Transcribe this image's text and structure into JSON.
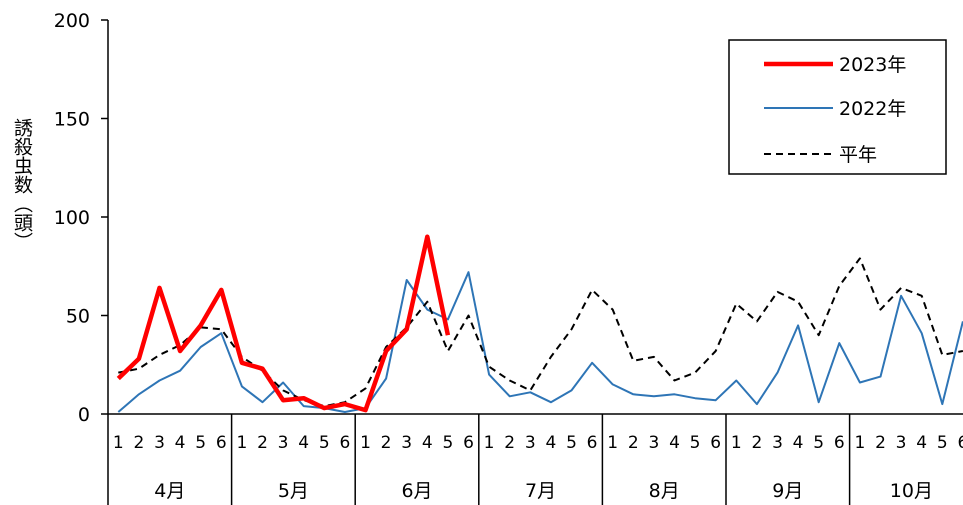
{
  "chart_data": {
    "type": "line",
    "ylabel": "誘殺虫数（頭）",
    "ylim": [
      0,
      200
    ],
    "yticks": [
      "0",
      "50",
      "100",
      "150",
      "200"
    ],
    "sub_labels": [
      "1",
      "2",
      "3",
      "4",
      "5",
      "6"
    ],
    "months": [
      "4月",
      "5月",
      "6月",
      "7月",
      "8月",
      "9月",
      "10月"
    ],
    "series": [
      {
        "name": "2023年",
        "color": "#ff0000",
        "style": "solid-thick",
        "values": [
          18,
          28,
          64,
          32,
          45,
          63,
          26,
          23,
          7,
          8,
          3,
          5,
          2,
          32,
          43,
          90,
          40
        ]
      },
      {
        "name": "2022年",
        "color": "#2e75b6",
        "style": "solid",
        "values": [
          1,
          10,
          17,
          22,
          34,
          41,
          14,
          6,
          16,
          4,
          3,
          1,
          3,
          18,
          68,
          53,
          48,
          72,
          20,
          9,
          11,
          6,
          12,
          26,
          15,
          10,
          9,
          10,
          8,
          7,
          17,
          5,
          21,
          45,
          6,
          36,
          16,
          19,
          60,
          41,
          5,
          47
        ]
      },
      {
        "name": "平年",
        "color": "#000000",
        "style": "dashed",
        "values": [
          21,
          23,
          30,
          35,
          44,
          43,
          29,
          22,
          12,
          7,
          4,
          6,
          13,
          34,
          44,
          57,
          32,
          50,
          24,
          17,
          12,
          29,
          43,
          63,
          53,
          27,
          29,
          17,
          21,
          32,
          56,
          47,
          62,
          57,
          40,
          65,
          79,
          53,
          64,
          60,
          30,
          32
        ]
      }
    ],
    "legend": "top-right",
    "grid": false
  }
}
